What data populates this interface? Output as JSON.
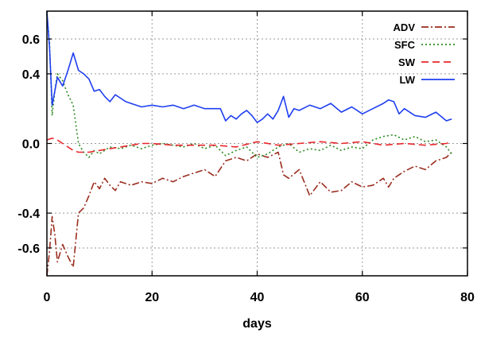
{
  "chart_data": {
    "type": "line",
    "title": "",
    "xlabel": "days",
    "ylabel": "",
    "xlim": [
      0,
      80
    ],
    "ylim": [
      -0.76,
      0.76
    ],
    "xticks": [
      0,
      20,
      40,
      60,
      80
    ],
    "yticks": [
      -0.6,
      -0.4,
      0.0,
      0.4,
      0.6
    ],
    "ytick_labels": [
      "-0.6",
      "-0.4",
      "0.0",
      "0.4",
      "0.6"
    ],
    "xtick_labels": [
      "0",
      "20",
      "40",
      "60",
      "80"
    ],
    "grid": true,
    "legend_position": "top-right",
    "series": [
      {
        "name": "ADV",
        "color": "#9b2d1f",
        "dash": "dash-dot",
        "x": [
          0,
          0.5,
          1,
          1.5,
          2,
          3,
          4,
          5,
          6,
          7,
          8,
          9,
          10,
          11,
          12,
          13,
          14,
          16,
          18,
          20,
          22,
          24,
          26,
          28,
          30,
          32,
          34,
          36,
          38,
          40,
          42,
          44,
          45,
          46,
          48,
          50,
          52,
          54,
          56,
          58,
          60,
          62,
          64,
          65,
          66,
          68,
          70,
          72,
          74,
          76,
          77
        ],
        "y": [
          -0.76,
          -0.62,
          -0.42,
          -0.52,
          -0.68,
          -0.58,
          -0.65,
          -0.71,
          -0.4,
          -0.37,
          -0.3,
          -0.22,
          -0.26,
          -0.2,
          -0.24,
          -0.27,
          -0.22,
          -0.24,
          -0.22,
          -0.23,
          -0.2,
          -0.22,
          -0.19,
          -0.17,
          -0.15,
          -0.19,
          -0.1,
          -0.08,
          -0.1,
          -0.06,
          -0.08,
          -0.05,
          -0.18,
          -0.2,
          -0.15,
          -0.3,
          -0.22,
          -0.28,
          -0.27,
          -0.22,
          -0.25,
          -0.24,
          -0.2,
          -0.25,
          -0.2,
          -0.16,
          -0.13,
          -0.15,
          -0.1,
          -0.08,
          -0.05
        ]
      },
      {
        "name": "SFC",
        "color": "#2a8a1e",
        "dash": "dotted",
        "x": [
          0,
          0.5,
          1,
          1.5,
          2,
          3,
          4,
          5,
          6,
          7,
          8,
          9,
          10,
          12,
          14,
          16,
          18,
          20,
          22,
          24,
          26,
          28,
          30,
          32,
          34,
          36,
          38,
          40,
          42,
          44,
          46,
          48,
          50,
          52,
          54,
          56,
          58,
          60,
          62,
          64,
          66,
          68,
          70,
          72,
          74,
          76,
          77
        ],
        "y": [
          0.74,
          0.58,
          0.16,
          0.3,
          0.4,
          0.36,
          0.28,
          0.22,
          0.0,
          -0.05,
          -0.08,
          -0.04,
          -0.06,
          -0.02,
          -0.03,
          -0.01,
          -0.03,
          -0.01,
          0.0,
          -0.01,
          -0.02,
          0.0,
          -0.03,
          -0.01,
          -0.07,
          -0.04,
          -0.02,
          -0.08,
          -0.06,
          -0.02,
          0.0,
          -0.05,
          -0.03,
          -0.04,
          -0.01,
          -0.04,
          -0.02,
          -0.03,
          0.02,
          0.04,
          0.05,
          0.02,
          0.04,
          0.01,
          0.02,
          -0.02,
          -0.06
        ]
      },
      {
        "name": "SW",
        "color": "#e8272d",
        "dash": "dashed",
        "x": [
          0,
          1,
          2,
          3,
          4,
          5,
          6,
          8,
          10,
          12,
          14,
          16,
          18,
          20,
          24,
          28,
          32,
          36,
          40,
          44,
          48,
          52,
          56,
          60,
          64,
          68,
          72,
          76,
          77
        ],
        "y": [
          0.02,
          0.03,
          0.02,
          0.0,
          -0.02,
          -0.04,
          -0.05,
          -0.05,
          -0.04,
          -0.03,
          -0.02,
          -0.01,
          0.0,
          0.0,
          -0.01,
          -0.01,
          -0.01,
          -0.02,
          0.01,
          -0.01,
          0.0,
          0.01,
          0.0,
          0.01,
          -0.01,
          0.0,
          -0.01,
          0.0,
          0.01
        ]
      },
      {
        "name": "LW",
        "color": "#1f3ff0",
        "dash": "solid",
        "x": [
          0,
          0.5,
          1,
          1.5,
          2,
          3,
          4,
          5,
          6,
          7,
          8,
          9,
          10,
          11,
          12,
          13,
          14,
          15,
          16,
          18,
          20,
          22,
          24,
          26,
          28,
          30,
          32,
          33,
          34,
          35,
          36,
          37,
          38,
          39,
          40,
          41,
          42,
          43,
          44,
          45,
          46,
          47,
          48,
          50,
          52,
          54,
          56,
          58,
          60,
          62,
          64,
          65,
          66,
          67,
          68,
          70,
          72,
          74,
          76,
          77
        ],
        "y": [
          0.76,
          0.55,
          0.22,
          0.3,
          0.38,
          0.33,
          0.42,
          0.52,
          0.42,
          0.4,
          0.37,
          0.3,
          0.31,
          0.27,
          0.24,
          0.28,
          0.26,
          0.24,
          0.23,
          0.21,
          0.22,
          0.21,
          0.22,
          0.2,
          0.22,
          0.2,
          0.2,
          0.2,
          0.13,
          0.16,
          0.14,
          0.17,
          0.19,
          0.16,
          0.12,
          0.14,
          0.17,
          0.14,
          0.19,
          0.27,
          0.15,
          0.2,
          0.19,
          0.22,
          0.2,
          0.23,
          0.18,
          0.21,
          0.17,
          0.2,
          0.23,
          0.25,
          0.24,
          0.17,
          0.2,
          0.16,
          0.15,
          0.18,
          0.13,
          0.14
        ]
      }
    ]
  }
}
